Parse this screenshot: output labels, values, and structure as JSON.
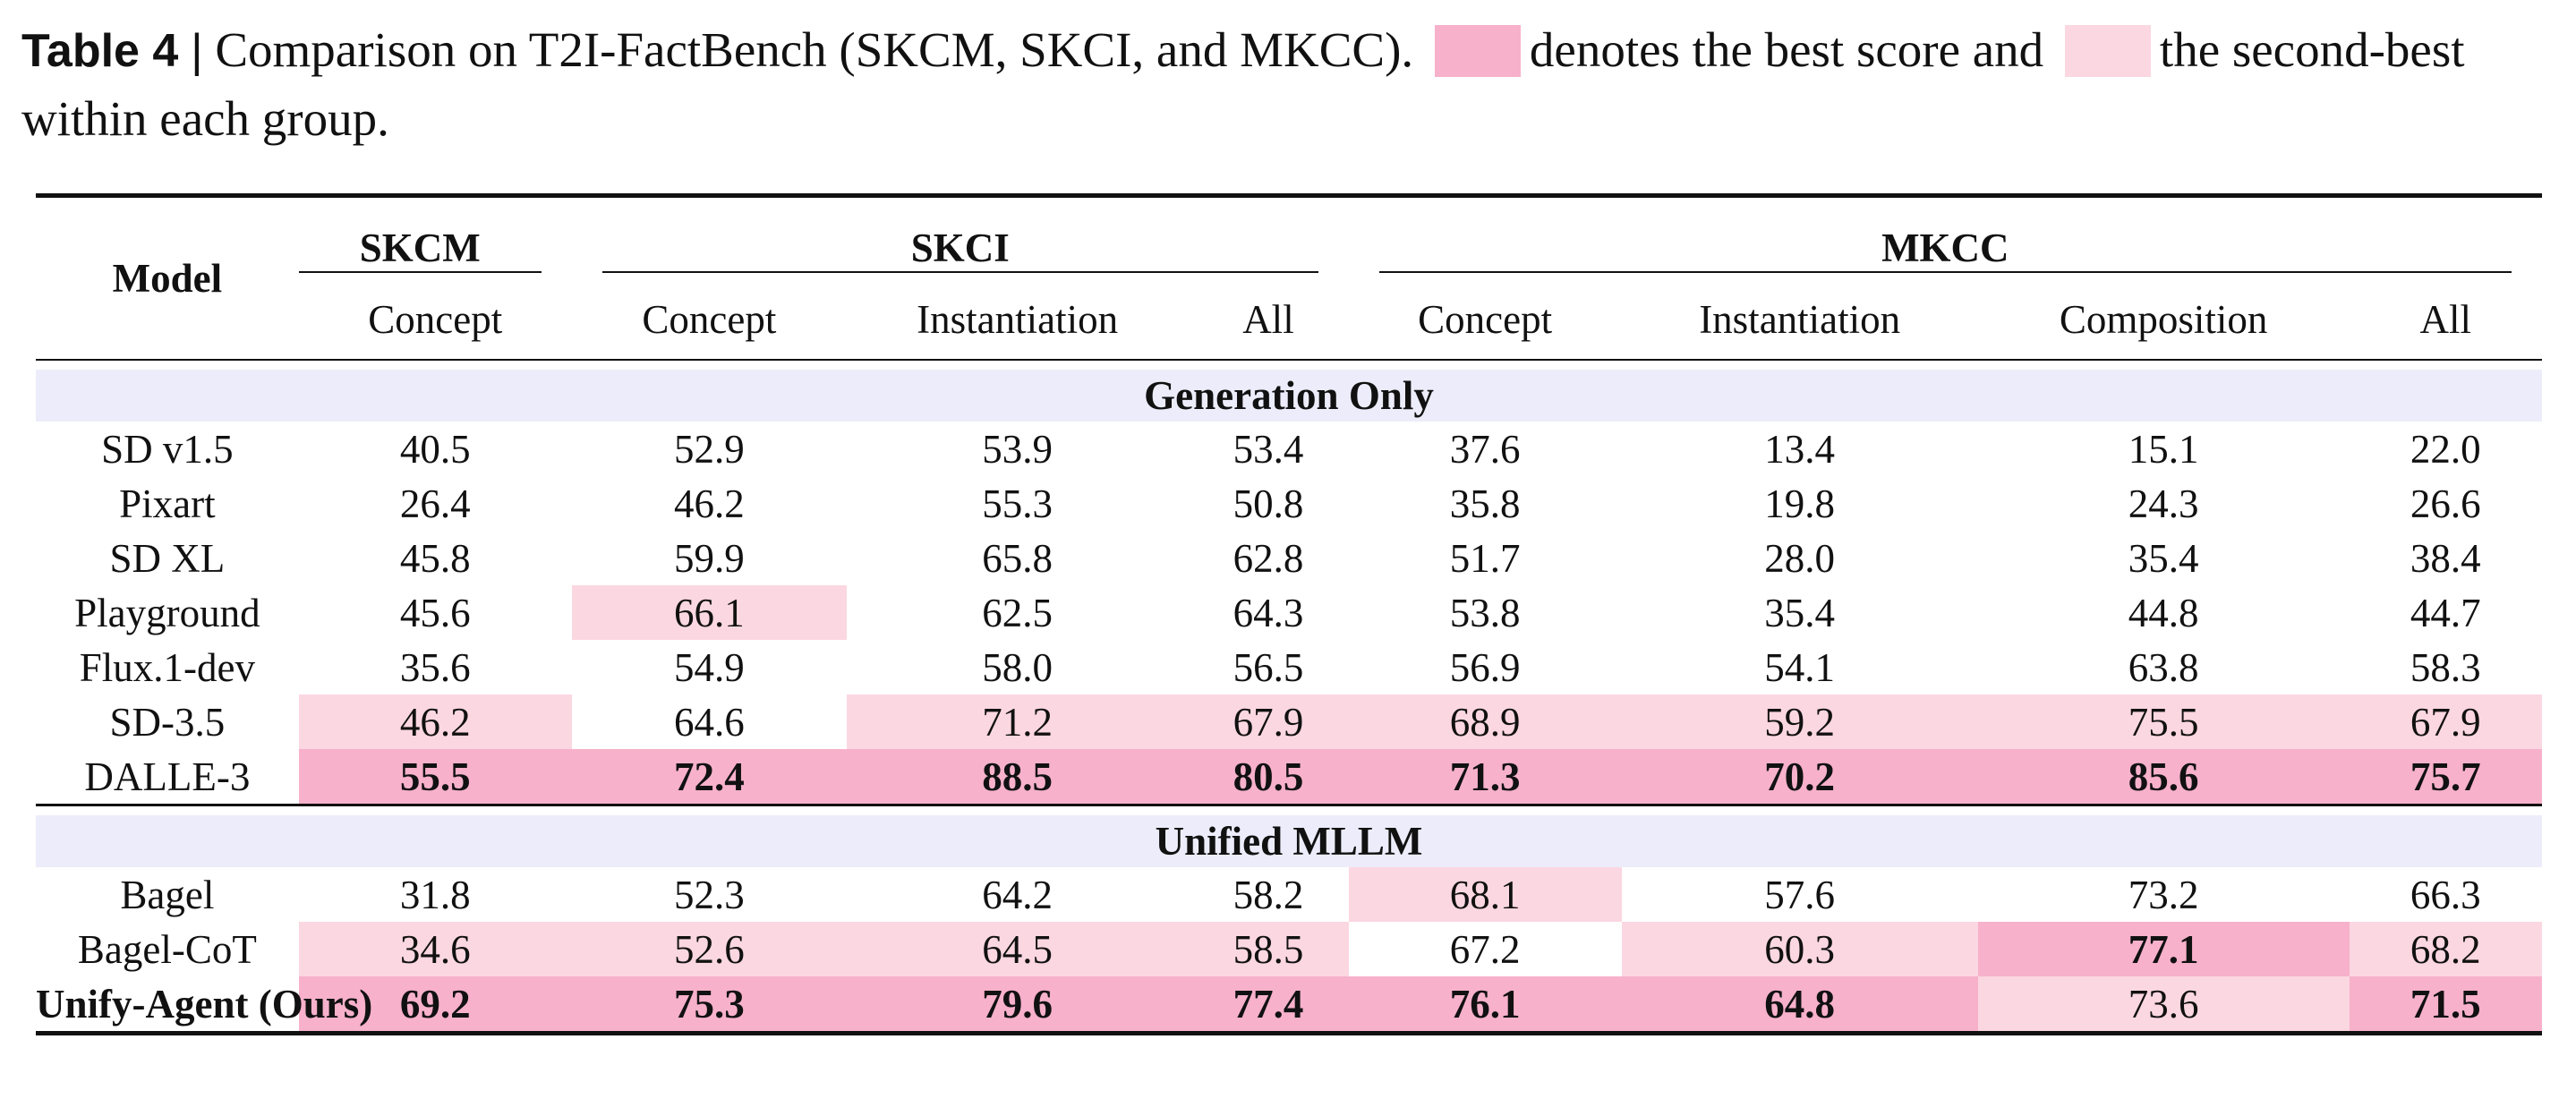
{
  "caption": {
    "label": "Table 4",
    "separator": "|",
    "text_part1": "Comparison on T2I-FactBench (SKCM, SKCI, and MKCC).",
    "text_part2": "denotes the best score and",
    "text_part3": "the second-best within each group."
  },
  "colors": {
    "best": "#f7b1ca",
    "second": "#fbd7e2",
    "section_band": "#ececfa"
  },
  "header": {
    "model": "Model",
    "groups": [
      "SKCM",
      "SKCI",
      "MKCC"
    ],
    "subcolumns": [
      "Concept",
      "Concept",
      "Instantiation",
      "All",
      "Concept",
      "Instantiation",
      "Composition",
      "All"
    ]
  },
  "sections": [
    {
      "title": "Generation Only",
      "rows": [
        {
          "model": "SD v1.5",
          "values": [
            "40.5",
            "52.9",
            "53.9",
            "53.4",
            "37.6",
            "13.4",
            "15.1",
            "22.0"
          ],
          "marks": [
            "",
            "",
            "",
            "",
            "",
            "",
            "",
            ""
          ]
        },
        {
          "model": "Pixart",
          "values": [
            "26.4",
            "46.2",
            "55.3",
            "50.8",
            "35.8",
            "19.8",
            "24.3",
            "26.6"
          ],
          "marks": [
            "",
            "",
            "",
            "",
            "",
            "",
            "",
            ""
          ]
        },
        {
          "model": "SD XL",
          "values": [
            "45.8",
            "59.9",
            "65.8",
            "62.8",
            "51.7",
            "28.0",
            "35.4",
            "38.4"
          ],
          "marks": [
            "",
            "",
            "",
            "",
            "",
            "",
            "",
            ""
          ]
        },
        {
          "model": "Playground",
          "values": [
            "45.6",
            "66.1",
            "62.5",
            "64.3",
            "53.8",
            "35.4",
            "44.8",
            "44.7"
          ],
          "marks": [
            "",
            "second",
            "",
            "",
            "",
            "",
            "",
            ""
          ]
        },
        {
          "model": "Flux.1-dev",
          "values": [
            "35.6",
            "54.9",
            "58.0",
            "56.5",
            "56.9",
            "54.1",
            "63.8",
            "58.3"
          ],
          "marks": [
            "",
            "",
            "",
            "",
            "",
            "",
            "",
            ""
          ]
        },
        {
          "model": "SD-3.5",
          "values": [
            "46.2",
            "64.6",
            "71.2",
            "67.9",
            "68.9",
            "59.2",
            "75.5",
            "67.9"
          ],
          "marks": [
            "second",
            "",
            "second",
            "second",
            "second",
            "second",
            "second",
            "second"
          ]
        },
        {
          "model": "DALLE-3",
          "values": [
            "55.5",
            "72.4",
            "88.5",
            "80.5",
            "71.3",
            "70.2",
            "85.6",
            "75.7"
          ],
          "marks": [
            "best",
            "best",
            "best",
            "best",
            "best",
            "best",
            "best",
            "best"
          ]
        }
      ]
    },
    {
      "title": "Unified MLLM",
      "rows": [
        {
          "model": "Bagel",
          "values": [
            "31.8",
            "52.3",
            "64.2",
            "58.2",
            "68.1",
            "57.6",
            "73.2",
            "66.3"
          ],
          "marks": [
            "",
            "",
            "",
            "",
            "second",
            "",
            "",
            ""
          ]
        },
        {
          "model": "Bagel-CoT",
          "values": [
            "34.6",
            "52.6",
            "64.5",
            "58.5",
            "67.2",
            "60.3",
            "77.1",
            "68.2"
          ],
          "marks": [
            "second",
            "second",
            "second",
            "second",
            "",
            "second",
            "best",
            "second"
          ]
        },
        {
          "model": "Unify-Agent (Ours)",
          "model_bold": true,
          "values": [
            "69.2",
            "75.3",
            "79.6",
            "77.4",
            "76.1",
            "64.8",
            "73.6",
            "71.5"
          ],
          "marks": [
            "best",
            "best",
            "best",
            "best",
            "best",
            "best",
            "second",
            "best"
          ]
        }
      ]
    }
  ]
}
